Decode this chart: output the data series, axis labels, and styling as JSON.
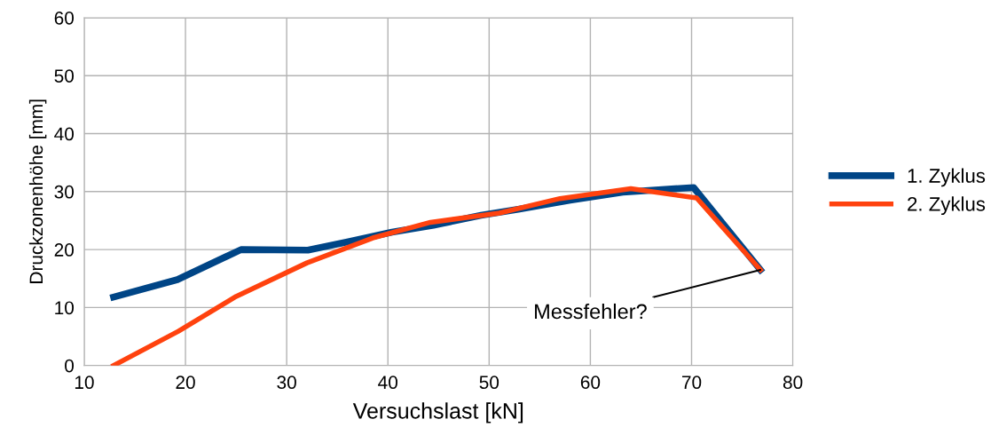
{
  "chart_data": {
    "type": "line",
    "xlabel": "Versuchslast [kN]",
    "ylabel": "Druckzonenhöhe [mm]",
    "xlim": [
      10,
      80
    ],
    "xticks": [
      10,
      20,
      30,
      40,
      50,
      60,
      70,
      80
    ],
    "ylim": [
      0,
      60
    ],
    "yticks": [
      0,
      10,
      20,
      30,
      40,
      50,
      60
    ],
    "grid": true,
    "legend": "right",
    "marker": "none",
    "line_style": "solid",
    "series": [
      {
        "name": "1. Zyklus",
        "color": "#004586",
        "x": [
          12.9,
          19.2,
          25.5,
          32.1,
          36,
          40.4,
          44.5,
          49.2,
          53,
          58,
          63.2,
          70.2,
          76.8
        ],
        "values": [
          11.8,
          14.8,
          20,
          19.9,
          21.3,
          23,
          24.2,
          25.9,
          27,
          28.5,
          29.9,
          30.7,
          16.5
        ]
      },
      {
        "name": "2. Zyklus",
        "color": "#ff420e",
        "x": [
          12.9,
          19.3,
          25,
          32,
          38.5,
          44.2,
          51,
          57,
          64,
          70.5,
          76.8
        ],
        "values": [
          0,
          5.9,
          11.9,
          17.7,
          22,
          24.7,
          26.3,
          28.8,
          30.5,
          28.9,
          16.5
        ]
      }
    ],
    "annotations": [
      {
        "text": "Messfehler?",
        "x": 76.8,
        "y": 16.5
      }
    ]
  }
}
